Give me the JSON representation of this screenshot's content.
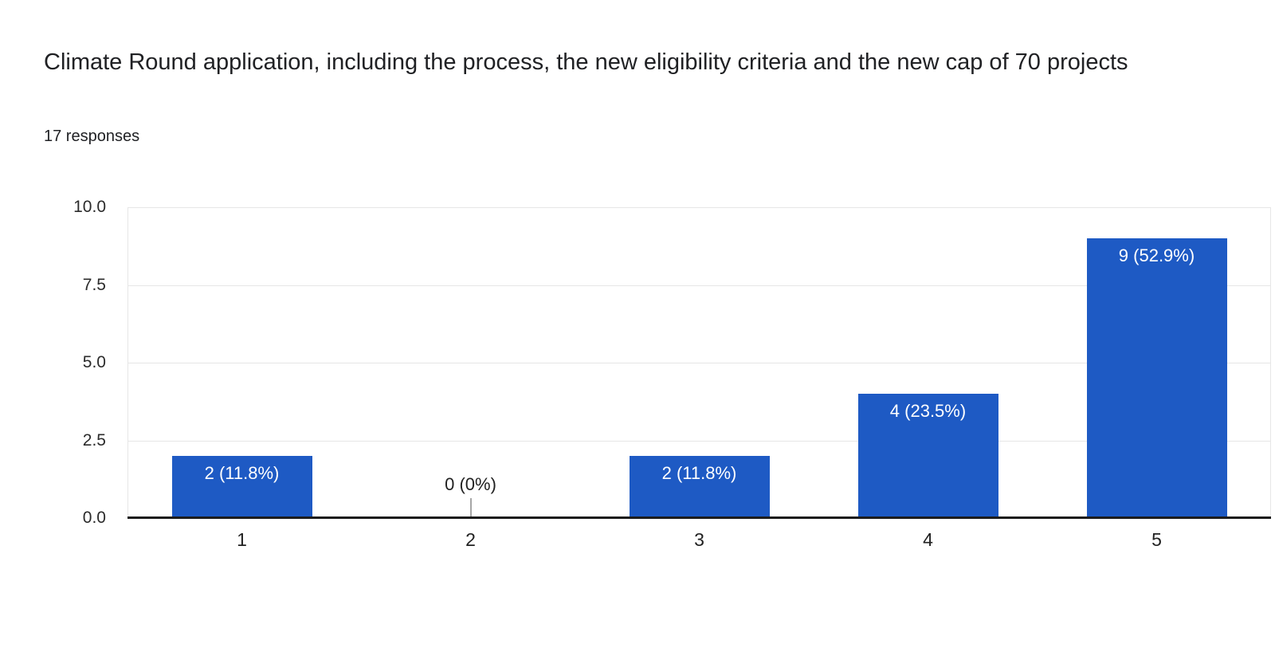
{
  "header": {
    "title": "Climate Round application, including the process, the new eligibility criteria and the new cap of 70 projects",
    "responses": "17 responses"
  },
  "colors": {
    "bar": "#1e5ac4",
    "bar_label_text": "#ffffff",
    "zero_label_text": "#212121",
    "zero_stub": "#a6a6a6",
    "gridline": "#e6e6e6",
    "axis_line": "#1c1c1c",
    "tick_text": "#2b2b2b",
    "title_text": "#202124",
    "background": "#ffffff"
  },
  "chart_data": {
    "type": "bar",
    "title": "Climate Round application, including the process, the new eligibility criteria and the new cap of 70 projects",
    "subtitle": "17 responses",
    "categories": [
      "1",
      "2",
      "3",
      "4",
      "5"
    ],
    "values": [
      2,
      0,
      2,
      4,
      9
    ],
    "bar_labels": [
      "2 (11.8%)",
      "0 (0%)",
      "2 (11.8%)",
      "4 (23.5%)",
      "9 (52.9%)"
    ],
    "xlabel": "",
    "ylabel": "",
    "ylim": [
      0,
      10
    ],
    "yticks": [
      0,
      2.5,
      5,
      7.5,
      10
    ],
    "ytick_labels": [
      "0.0",
      "2.5",
      "5.0",
      "7.5",
      "10.0"
    ],
    "grid": true,
    "legend_position": "none"
  }
}
